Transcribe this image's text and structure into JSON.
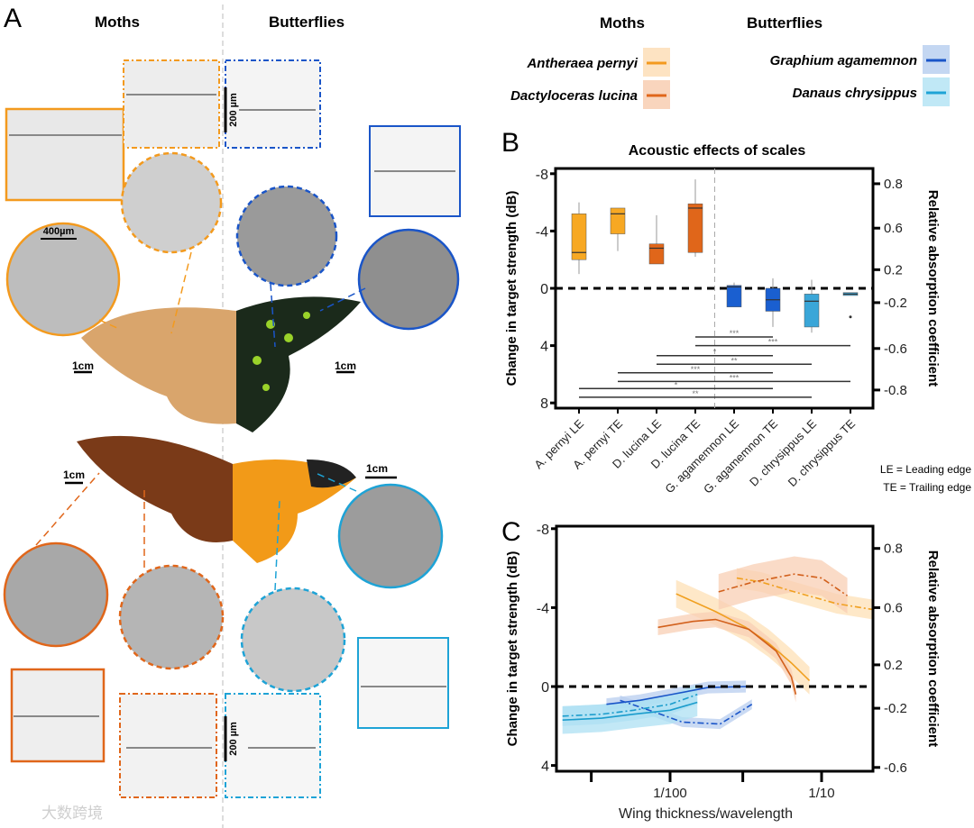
{
  "panel_a": {
    "label": "A",
    "moths_heading": "Moths",
    "butterflies_heading": "Butterflies",
    "scale_200um_top": "200 µm",
    "scale_400um": "400µm",
    "scale_1cm_moth_top": "1cm",
    "scale_1cm_butterfly_top": "1cm",
    "scale_1cm_moth_bottom": "1cm",
    "scale_1cm_butterfly_bottom": "1cm",
    "scale_200um_bottom": "200 µm",
    "watermark": "大数跨境"
  },
  "legend": {
    "moths_heading": "Moths",
    "butterflies_heading": "Butterflies",
    "entries": [
      {
        "name": "Antheraea pernyi",
        "color": "#f39a1e",
        "band": "#fde3c2"
      },
      {
        "name": "Dactyloceras lucina",
        "color": "#e0661a",
        "band": "#f9d5bd"
      },
      {
        "name": "Graphium agamemnon",
        "color": "#1a55c8",
        "band": "#c4d7f2"
      },
      {
        "name": "Danaus chrysippus",
        "color": "#1ea3d6",
        "band": "#c0e8f6"
      }
    ]
  },
  "edge_key": {
    "le": "LE = Leading edge",
    "te": "TE = Trailing edge"
  },
  "chart_data": [
    {
      "panel": "B",
      "type": "box",
      "title": "Acoustic effects of scales",
      "ylabel": "Change in target strength (dB)",
      "y2label": "Relative absorption coefficient",
      "ylim": [
        -8,
        8
      ],
      "yticks": [
        -8,
        -4,
        0,
        4,
        8
      ],
      "y2ticks": [
        "0.8",
        "0.6",
        "0.2",
        "-0.2",
        "-0.6",
        "-0.8"
      ],
      "categories": [
        "A. pernyi LE",
        "A. pernyi TE",
        "D. lucina LE",
        "D. lucina TE",
        "G. agamemnon  LE",
        "G. agamemnon  TE",
        "D. chrysippus LE",
        "D. chrysippus TE"
      ],
      "colors": [
        "#f7a823",
        "#f7a823",
        "#e0661a",
        "#e0661a",
        "#1a5fd0",
        "#1a5fd0",
        "#3aa6d8",
        "#3aa6d8"
      ],
      "boxes": [
        {
          "wlo": -6.0,
          "q1": -5.2,
          "median": -2.5,
          "q3": -2.0,
          "whi": -1.0
        },
        {
          "wlo": -5.6,
          "q1": -5.6,
          "median": -5.2,
          "q3": -3.8,
          "whi": -2.6
        },
        {
          "wlo": -5.1,
          "q1": -3.1,
          "median": -2.8,
          "q3": -1.7,
          "whi": -1.7
        },
        {
          "wlo": -7.6,
          "q1": -5.9,
          "median": -5.6,
          "q3": -2.5,
          "whi": -2.2
        },
        {
          "wlo": -0.4,
          "q1": -0.2,
          "median": -0.1,
          "q3": 1.3,
          "whi": 1.3
        },
        {
          "wlo": -0.7,
          "q1": 0.0,
          "median": 0.8,
          "q3": 1.6,
          "whi": 2.7
        },
        {
          "wlo": -0.6,
          "q1": 0.4,
          "median": 0.9,
          "q3": 2.7,
          "whi": 3.1
        },
        {
          "wlo": 0.3,
          "q1": 0.3,
          "median": 0.4,
          "q3": 0.5,
          "whi": 0.5,
          "outlier": 2.0
        }
      ],
      "reference_line": 0,
      "significance": [
        {
          "from": 3,
          "to": 5,
          "y": 3.4,
          "label": "***"
        },
        {
          "from": 3,
          "to": 7,
          "y": 4.0,
          "label": "***"
        },
        {
          "from": 2,
          "to": 5,
          "y": 4.7,
          "label": "*"
        },
        {
          "from": 2,
          "to": 6,
          "y": 5.3,
          "label": "**"
        },
        {
          "from": 1,
          "to": 5,
          "y": 5.9,
          "label": "***"
        },
        {
          "from": 1,
          "to": 7,
          "y": 6.5,
          "label": "***"
        },
        {
          "from": 0,
          "to": 5,
          "y": 7.0,
          "label": "*"
        },
        {
          "from": 0,
          "to": 6,
          "y": 7.6,
          "label": "**"
        }
      ]
    },
    {
      "panel": "C",
      "type": "line",
      "xlabel": "Wing thickness/wavelength",
      "ylabel": "Change in target strength (dB)",
      "y2label": "Relative absorption coefficient",
      "xscale": "log10",
      "xlim_log10": [
        -2.75,
        -0.66
      ],
      "xticks": [
        {
          "log10": -2.52,
          "label": ""
        },
        {
          "log10": -2,
          "label": "1/100"
        },
        {
          "log10": -1.52,
          "label": ""
        },
        {
          "log10": -1,
          "label": "1/10"
        }
      ],
      "ylim": [
        -8,
        4
      ],
      "yticks": [
        -8,
        -4,
        0,
        4
      ],
      "y2ticks": [
        "0.8",
        "0.6",
        "0.2",
        "-0.2",
        "-0.6"
      ],
      "reference_line": 0,
      "series": [
        {
          "name": "A. pernyi LE",
          "color": "#f0a020",
          "band": "#fde0b5",
          "dash": "solid",
          "ci": 0.7,
          "points": [
            [
              -1.96,
              -4.7
            ],
            [
              -1.7,
              -3.8
            ],
            [
              -1.5,
              -3.0
            ],
            [
              -1.35,
              -2.2
            ],
            [
              -1.2,
              -1.2
            ],
            [
              -1.08,
              -0.3
            ]
          ]
        },
        {
          "name": "A. pernyi TE",
          "color": "#f0a020",
          "band": "#fde0b5",
          "dash": "dashdot",
          "ci": 0.5,
          "points": [
            [
              -1.56,
              -5.5
            ],
            [
              -1.4,
              -5.3
            ],
            [
              -1.18,
              -4.8
            ],
            [
              -0.9,
              -4.2
            ],
            [
              -0.66,
              -3.9
            ]
          ]
        },
        {
          "name": "D. lucina LE",
          "color": "#d2601c",
          "band": "#f8cfb4",
          "dash": "solid",
          "ci": 0.4,
          "points": [
            [
              -2.08,
              -3.0
            ],
            [
              -1.85,
              -3.3
            ],
            [
              -1.7,
              -3.4
            ],
            [
              -1.48,
              -2.9
            ],
            [
              -1.3,
              -1.8
            ],
            [
              -1.2,
              -0.5
            ],
            [
              -1.17,
              0.4
            ]
          ]
        },
        {
          "name": "D. lucina TE",
          "color": "#d2601c",
          "band": "#f8cfb4",
          "dash": "dashdot",
          "ci": 0.9,
          "points": [
            [
              -1.68,
              -4.8
            ],
            [
              -1.45,
              -5.3
            ],
            [
              -1.18,
              -5.7
            ],
            [
              -1.0,
              -5.5
            ],
            [
              -0.83,
              -4.6
            ]
          ]
        },
        {
          "name": "G. agamemnon LE",
          "color": "#1a55c8",
          "band": "#b8cdef",
          "dash": "solid",
          "ci": 0.3,
          "points": [
            [
              -2.42,
              0.9
            ],
            [
              -2.2,
              0.7
            ],
            [
              -1.99,
              0.4
            ],
            [
              -1.75,
              0.05
            ],
            [
              -1.5,
              0.0
            ]
          ]
        },
        {
          "name": "G. agamemnon TE",
          "color": "#1a55c8",
          "band": "#b8cdef",
          "dash": "dashdot",
          "ci": 0.25,
          "points": [
            [
              -2.33,
              0.7
            ],
            [
              -2.1,
              1.3
            ],
            [
              -1.92,
              1.8
            ],
            [
              -1.67,
              1.9
            ],
            [
              -1.46,
              0.9
            ]
          ]
        },
        {
          "name": "D. chrysippus LE",
          "color": "#1a9ccc",
          "band": "#aee0f3",
          "dash": "solid",
          "ci": 0.7,
          "points": [
            [
              -2.71,
              1.7
            ],
            [
              -2.45,
              1.6
            ],
            [
              -2.24,
              1.4
            ],
            [
              -2.0,
              1.2
            ],
            [
              -1.82,
              0.8
            ]
          ]
        },
        {
          "name": "D. chrysippus TE",
          "color": "#1a9ccc",
          "band": "#aee0f3",
          "dash": "dashdot",
          "ci": 0.5,
          "points": [
            [
              -2.71,
              1.5
            ],
            [
              -2.45,
              1.4
            ],
            [
              -2.24,
              1.2
            ],
            [
              -2.0,
              0.9
            ],
            [
              -1.82,
              0.4
            ]
          ]
        }
      ]
    }
  ],
  "panel_b_label": "B",
  "panel_c_label": "C"
}
